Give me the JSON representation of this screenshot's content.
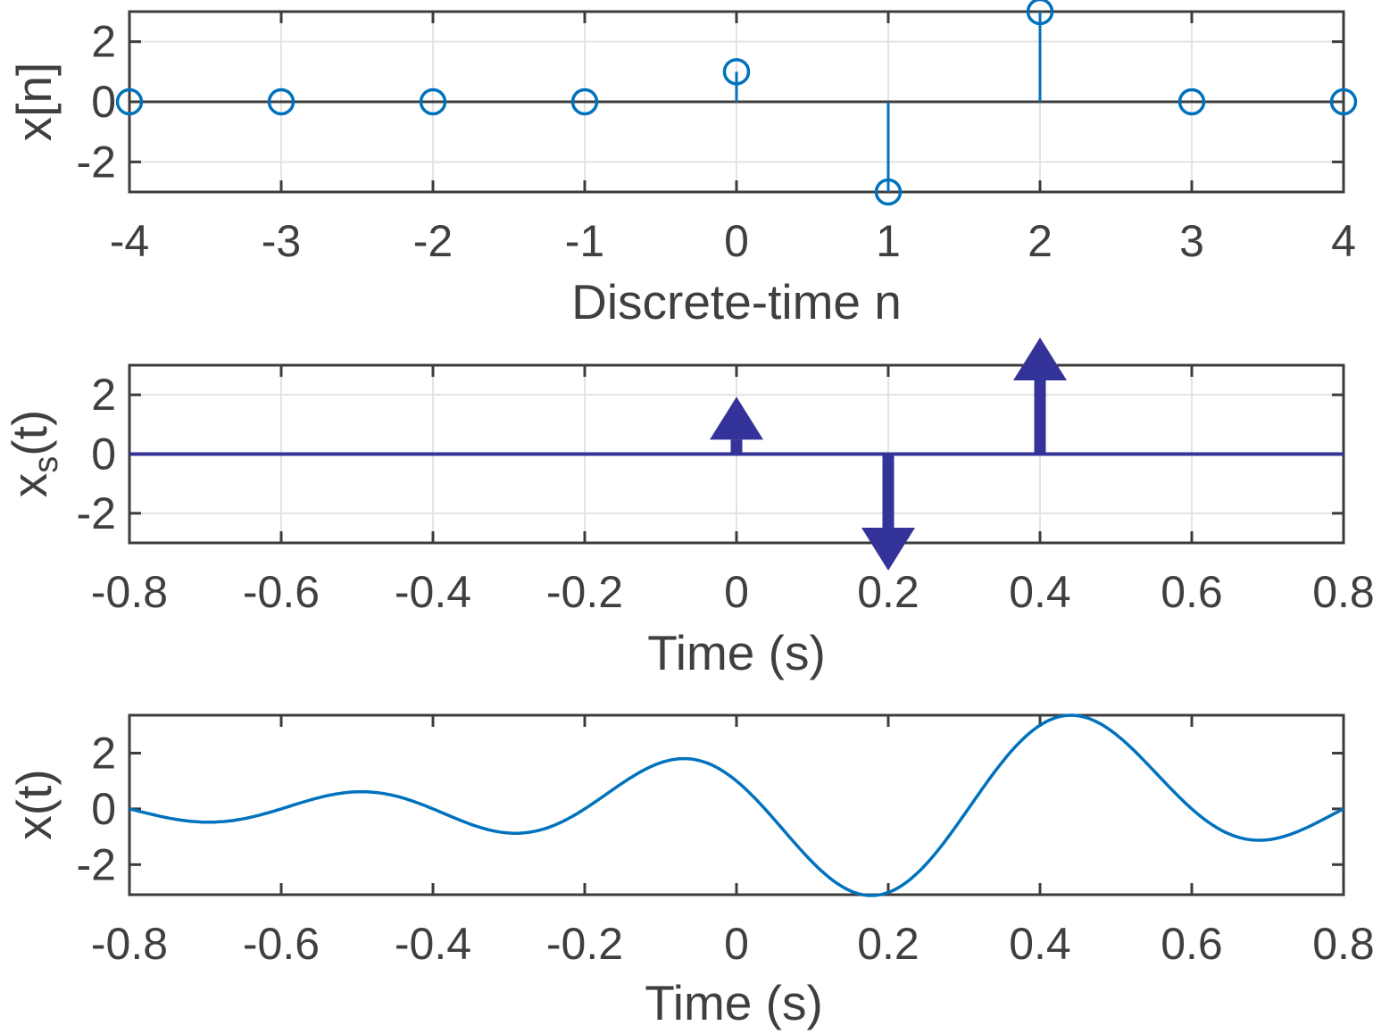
{
  "style": {
    "background": "#FFFFFF",
    "line_blue": "#0072BD",
    "impulse_navy": "#333399",
    "axis_color": "#3C3C3C",
    "text_color": "#3F3F3F",
    "grid_color": "#E3E3E3"
  },
  "chart_data": [
    {
      "id": "discrete-stem",
      "type": "stem",
      "xlabel": "Discrete-time n",
      "ylabel": "x[n]",
      "x": [
        -4,
        -3,
        -2,
        -1,
        0,
        1,
        2,
        3,
        4
      ],
      "values": [
        0,
        0,
        0,
        0,
        1,
        -3,
        3,
        0,
        0
      ],
      "xlim": [
        -4,
        4
      ],
      "ylim": [
        -3,
        3
      ],
      "xtick_values": [
        -4,
        -3,
        -2,
        -1,
        0,
        1,
        2,
        3,
        4
      ],
      "xtick_labels": [
        "-4",
        "-3",
        "-2",
        "-1",
        "0",
        "1",
        "2",
        "3",
        "4"
      ],
      "ytick_values": [
        -2,
        0,
        2
      ],
      "ytick_labels": [
        "-2",
        "0",
        "2"
      ],
      "grid": true,
      "marker": "open-circle",
      "baseline": 0
    },
    {
      "id": "impulse-train",
      "type": "impulse",
      "xlabel": "Time (s)",
      "ylabel_parts": {
        "base": "x",
        "sub": "s",
        "rest": "(t)"
      },
      "impulses": [
        {
          "t": 0.0,
          "weight": 1
        },
        {
          "t": 0.2,
          "weight": -3
        },
        {
          "t": 0.4,
          "weight": 3
        }
      ],
      "xlim": [
        -0.8,
        0.8
      ],
      "ylim": [
        -3,
        3
      ],
      "xtick_values": [
        -0.8,
        -0.6,
        -0.4,
        -0.2,
        0,
        0.2,
        0.4,
        0.6,
        0.8
      ],
      "xtick_labels": [
        "-0.8",
        "-0.6",
        "-0.4",
        "-0.2",
        "0",
        "0.2",
        "0.4",
        "0.6",
        "0.8"
      ],
      "ytick_values": [
        -2,
        0,
        2
      ],
      "ytick_labels": [
        "-2",
        "0",
        "2"
      ],
      "grid": true,
      "baseline": 0
    },
    {
      "id": "reconstructed-signal",
      "type": "line",
      "xlabel": "Time (s)",
      "ylabel": "x(t)",
      "interpolation": {
        "method": "sinc",
        "T": 0.2,
        "samples": [
          {
            "n": 0,
            "value": 1
          },
          {
            "n": 1,
            "value": -3
          },
          {
            "n": 2,
            "value": 3
          }
        ]
      },
      "key_points": [
        {
          "t": -0.8,
          "y": 0
        },
        {
          "t": -0.7,
          "y": -0.48
        },
        {
          "t": -0.6,
          "y": 0
        },
        {
          "t": -0.5,
          "y": 0.61
        },
        {
          "t": -0.4,
          "y": 0
        },
        {
          "t": -0.3,
          "y": -0.87
        },
        {
          "t": -0.2,
          "y": 0
        },
        {
          "t": -0.1,
          "y": 1.66
        },
        {
          "t": -0.07,
          "y": 1.8
        },
        {
          "t": 0,
          "y": 1
        },
        {
          "t": 0.1,
          "y": -1.91
        },
        {
          "t": 0.19,
          "y": -3.08
        },
        {
          "t": 0.2,
          "y": -3
        },
        {
          "t": 0.3,
          "y": -0.21
        },
        {
          "t": 0.4,
          "y": 3
        },
        {
          "t": 0.44,
          "y": 3.36
        },
        {
          "t": 0.5,
          "y": 2.67
        },
        {
          "t": 0.6,
          "y": 0
        },
        {
          "t": 0.69,
          "y": -1.12
        },
        {
          "t": 0.8,
          "y": 0
        }
      ],
      "xlim": [
        -0.8,
        0.8
      ],
      "ylim": [
        -3.08,
        3.36
      ],
      "xtick_values": [
        -0.8,
        -0.6,
        -0.4,
        -0.2,
        0,
        0.2,
        0.4,
        0.6,
        0.8
      ],
      "xtick_labels": [
        "-0.8",
        "-0.6",
        "-0.4",
        "-0.2",
        "0",
        "0.2",
        "0.4",
        "0.6",
        "0.8"
      ],
      "ytick_values": [
        -2,
        0,
        2
      ],
      "ytick_labels": [
        "-2",
        "0",
        "2"
      ],
      "grid": false
    }
  ]
}
